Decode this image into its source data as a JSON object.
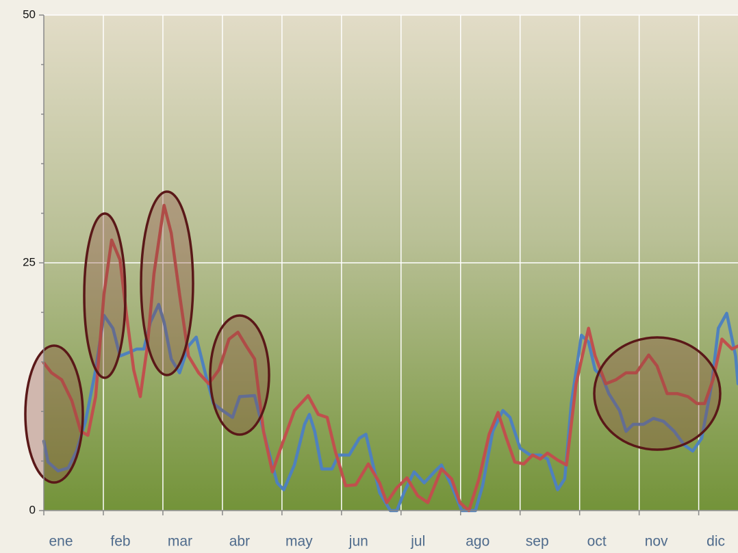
{
  "chart_data": {
    "type": "line",
    "xlim": [
      0,
      11.66
    ],
    "xticks": [
      {
        "value": 0,
        "label": "ene"
      },
      {
        "value": 1,
        "label": "feb"
      },
      {
        "value": 2,
        "label": "mar"
      },
      {
        "value": 3,
        "label": "abr"
      },
      {
        "value": 4,
        "label": "may"
      },
      {
        "value": 5,
        "label": "jun"
      },
      {
        "value": 6,
        "label": "jul"
      },
      {
        "value": 7,
        "label": "ago"
      },
      {
        "value": 8,
        "label": "sep"
      },
      {
        "value": 9,
        "label": "oct"
      },
      {
        "value": 10,
        "label": "nov"
      },
      {
        "value": 11,
        "label": "dic"
      }
    ],
    "ylim": [
      0,
      50
    ],
    "yticks": [
      0,
      25,
      50
    ],
    "minor_yticks": [
      5,
      10,
      15,
      20,
      30,
      35,
      40,
      45
    ],
    "grid": true,
    "series": [
      {
        "color": "#4f81bd",
        "x": [
          0,
          0.07,
          0.24,
          0.41,
          0.55,
          0.7,
          0.87,
          1.01,
          1.16,
          1.28,
          1.45,
          1.56,
          1.68,
          1.79,
          1.93,
          2.02,
          2.14,
          2.28,
          2.43,
          2.56,
          2.71,
          2.85,
          3.0,
          3.17,
          3.29,
          3.54,
          3.75,
          3.92,
          4.03,
          4.21,
          4.38,
          4.46,
          4.55,
          4.67,
          4.84,
          4.95,
          5.13,
          5.3,
          5.41,
          5.53,
          5.64,
          5.82,
          5.93,
          6.05,
          6.22,
          6.39,
          6.56,
          6.68,
          6.85,
          7.02,
          7.25,
          7.37,
          7.54,
          7.71,
          7.83,
          8.0,
          8.17,
          8.34,
          8.46,
          8.63,
          8.75,
          8.86,
          9.03,
          9.15,
          9.26,
          9.38,
          9.49,
          9.67,
          9.78,
          9.9,
          10.07,
          10.24,
          10.41,
          10.59,
          10.76,
          10.9,
          11.05,
          11.22,
          11.33,
          11.47,
          11.62,
          11.66
        ],
        "values": [
          7,
          4.9,
          4,
          4.3,
          6,
          9,
          14.2,
          19.7,
          18.4,
          15.6,
          16,
          16.3,
          16.3,
          19,
          20.8,
          19,
          15.3,
          13.9,
          16.6,
          17.5,
          13.9,
          10.8,
          10.1,
          9.4,
          11.5,
          11.6,
          6.6,
          2.8,
          2.1,
          4.6,
          8.7,
          9.7,
          8,
          4.2,
          4.2,
          5.6,
          5.6,
          7.3,
          7.7,
          4.6,
          1.8,
          0,
          0,
          1.8,
          3.9,
          2.8,
          3.9,
          4.6,
          2.5,
          0,
          0,
          2.5,
          8,
          10.1,
          9.4,
          6.3,
          5.6,
          5.6,
          5.2,
          2.1,
          3.2,
          10.8,
          17.7,
          17,
          14.2,
          13.5,
          11.8,
          10.1,
          8,
          8.7,
          8.7,
          9.3,
          9,
          8,
          6.6,
          6,
          7.3,
          12.8,
          18.4,
          19.9,
          15.6,
          12.8
        ]
      },
      {
        "color": "#c0504d",
        "x": [
          0,
          0.13,
          0.3,
          0.47,
          0.62,
          0.74,
          0.87,
          1.01,
          1.14,
          1.28,
          1.39,
          1.51,
          1.62,
          1.74,
          1.85,
          2.02,
          2.14,
          2.28,
          2.43,
          2.6,
          2.77,
          2.94,
          3.11,
          3.26,
          3.4,
          3.54,
          3.69,
          3.84,
          3.98,
          4.21,
          4.44,
          4.61,
          4.76,
          4.9,
          5.07,
          5.24,
          5.45,
          5.64,
          5.76,
          5.93,
          6.1,
          6.28,
          6.45,
          6.68,
          6.85,
          6.99,
          7.14,
          7.31,
          7.48,
          7.63,
          7.77,
          7.91,
          8.06,
          8.21,
          8.34,
          8.46,
          8.63,
          8.78,
          8.94,
          9.15,
          9.26,
          9.44,
          9.61,
          9.78,
          9.95,
          10.16,
          10.3,
          10.47,
          10.64,
          10.82,
          10.97,
          11.1,
          11.24,
          11.39,
          11.56,
          11.66
        ],
        "values": [
          14.9,
          13.9,
          13.2,
          11.1,
          8,
          7.6,
          11.5,
          21.8,
          27.3,
          25.3,
          19.7,
          14.2,
          11.5,
          16.6,
          23.9,
          30.8,
          28,
          21.8,
          15.6,
          13.9,
          12.8,
          14.2,
          17.3,
          18,
          16.6,
          15.3,
          8,
          3.9,
          6.3,
          10.1,
          11.6,
          9.7,
          9.4,
          5.9,
          2.5,
          2.6,
          4.7,
          2.8,
          0.8,
          2.3,
          3.3,
          1.5,
          0.8,
          4.2,
          3.2,
          0.8,
          0,
          3.2,
          7.7,
          9.9,
          7.3,
          4.9,
          4.7,
          5.6,
          5.2,
          5.8,
          5.1,
          4.6,
          12.8,
          18.4,
          15.6,
          12.8,
          13.2,
          13.9,
          13.9,
          15.7,
          14.6,
          11.8,
          11.8,
          11.5,
          10.8,
          10.8,
          13.2,
          17.3,
          16.3,
          16.6
        ]
      }
    ]
  }
}
